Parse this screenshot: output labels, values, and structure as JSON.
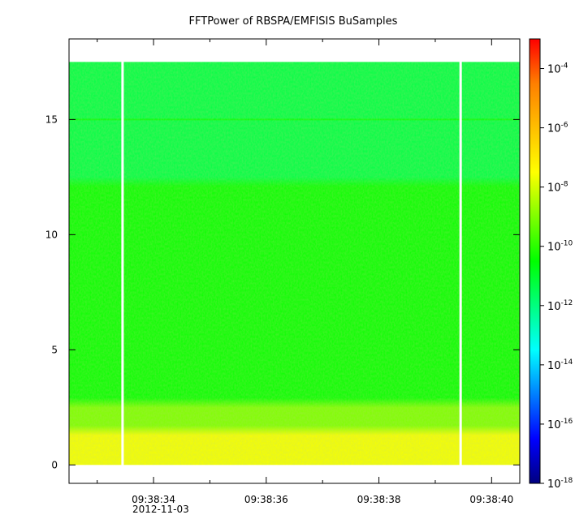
{
  "chart_data": {
    "type": "heatmap",
    "title": "FFTPower of RBSPA/EMFISIS  BuSamples",
    "xlabel": "",
    "ylabel": "",
    "x_ticks": [
      "09:38:34",
      "09:38:36",
      "09:38:38",
      "09:38:40"
    ],
    "x_start_date": "2012-11-03",
    "x_range": [
      "09:38:32.5",
      "09:38:40.5"
    ],
    "y_ticks": [
      0,
      5,
      10,
      15
    ],
    "ylim": [
      -0.8,
      18.5
    ],
    "data_y_range": [
      0,
      17.5
    ],
    "data_gaps": [
      "09:38:33.45",
      "09:38:39.45"
    ],
    "colorbar": {
      "scale": "log",
      "range": [
        1e-18,
        0.001
      ],
      "ticks": [
        {
          "base": "10",
          "exp": "-4",
          "value": 0.0001
        },
        {
          "base": "10",
          "exp": "-6",
          "value": 1e-06
        },
        {
          "base": "10",
          "exp": "-8",
          "value": 1e-08
        },
        {
          "base": "10",
          "exp": "-10",
          "value": 1e-10
        },
        {
          "base": "10",
          "exp": "-12",
          "value": 1e-12
        },
        {
          "base": "10",
          "exp": "-14",
          "value": 1e-14
        },
        {
          "base": "10",
          "exp": "-16",
          "value": 1e-16
        },
        {
          "base": "10",
          "exp": "-18",
          "value": 1e-18
        }
      ],
      "colormap": [
        "#00007f",
        "#0000ff",
        "#007fff",
        "#00ffff",
        "#00ff7f",
        "#00ff00",
        "#7fff00",
        "#ffff00",
        "#ffbf00",
        "#ff7f00",
        "#ff0000"
      ]
    },
    "bands": [
      {
        "y_from": 12.3,
        "y_to": 17.5,
        "log_power": -11.3
      },
      {
        "y_from": 2.7,
        "y_to": 12.3,
        "log_power": -10.4
      },
      {
        "y_from": 1.5,
        "y_to": 2.7,
        "log_power": -9.0
      },
      {
        "y_from": 0.0,
        "y_to": 1.5,
        "log_power": -7.6
      }
    ],
    "lines": [
      {
        "y": 15.0,
        "log_power": -10.6
      }
    ]
  }
}
